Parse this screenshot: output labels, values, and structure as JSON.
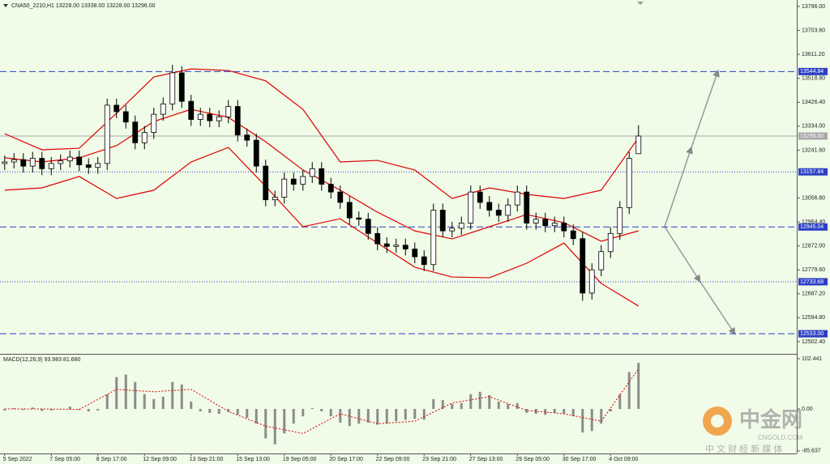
{
  "chart_data": [
    {
      "type": "candlestick",
      "title": "CNA50_2210,H1  13228.00 13338.00 13228.00 13296.00",
      "categories": [
        "5 Sep 2022",
        null,
        null,
        null,
        null,
        "7 Sep 05:00",
        null,
        null,
        null,
        null,
        "8 Sep 17:00",
        null,
        null,
        null,
        null,
        "12 Sep 09:00",
        null,
        null,
        null,
        null,
        "13 Sep 21:00",
        null,
        null,
        null,
        null,
        "15 Sep 13:00",
        null,
        null,
        null,
        null,
        "19 Sep 05:00",
        null,
        null,
        null,
        null,
        "20 Sep 17:00",
        null,
        null,
        null,
        null,
        "22 Sep 09:00",
        null,
        null,
        null,
        null,
        "23 Sep 21:00",
        null,
        null,
        null,
        null,
        "27 Sep 13:00",
        null,
        null,
        null,
        null,
        "29 Sep 05:00",
        null,
        null,
        null,
        null,
        "30 Sep 17:00",
        null,
        null,
        null,
        null,
        "4 Oct 09:00",
        null,
        null,
        null
      ],
      "open": [
        13190,
        13196,
        13205,
        13180,
        13210,
        13170,
        13190,
        13200,
        13215,
        13185,
        13175,
        13190,
        13415,
        13390,
        13350,
        13270,
        13310,
        13380,
        13420,
        13540,
        13430,
        13360,
        13380,
        13355,
        13370,
        13410,
        13300,
        13280,
        13180,
        13050,
        13060,
        13130,
        13110,
        13140,
        13170,
        13110,
        13080,
        13040,
        12980,
        12975,
        12920,
        12880,
        12870,
        12875,
        12860,
        12830,
        12800,
        13010,
        12930,
        12940,
        12960,
        13080,
        13040,
        13010,
        12990,
        13030,
        13080,
        12960,
        12975,
        12950,
        12960,
        12930,
        12900,
        12690,
        12780,
        12850,
        12920,
        13020,
        13228
      ],
      "high": [
        13221,
        13230,
        13230,
        13235,
        13235,
        13215,
        13225,
        13240,
        13240,
        13210,
        13215,
        13440,
        13440,
        13415,
        13375,
        13335,
        13405,
        13445,
        13571,
        13565,
        13455,
        13405,
        13405,
        13395,
        13435,
        13435,
        13325,
        13305,
        13205,
        13085,
        13155,
        13155,
        13165,
        13195,
        13195,
        13135,
        13105,
        13065,
        13005,
        13000,
        12945,
        12905,
        12900,
        12900,
        12885,
        12855,
        13035,
        13035,
        12965,
        12985,
        13105,
        13105,
        13065,
        13035,
        13055,
        13105,
        13105,
        13000,
        13000,
        12985,
        12985,
        12955,
        12925,
        12805,
        12875,
        12945,
        13045,
        13235,
        13338
      ],
      "low": [
        13165,
        13171,
        13155,
        13155,
        13145,
        13145,
        13165,
        13175,
        13160,
        13150,
        13150,
        13165,
        13365,
        13325,
        13245,
        13245,
        13285,
        13355,
        13395,
        13405,
        13335,
        13335,
        13330,
        13330,
        13345,
        13275,
        13255,
        13155,
        13025,
        13025,
        13035,
        13085,
        13085,
        13115,
        13085,
        13055,
        13015,
        12955,
        12950,
        12895,
        12855,
        12845,
        12845,
        12835,
        12805,
        12775,
        12775,
        12905,
        12905,
        12915,
        12935,
        13015,
        12985,
        12965,
        12965,
        13005,
        12935,
        12935,
        12925,
        12925,
        12905,
        12875,
        12660,
        12665,
        12755,
        12825,
        12895,
        12995,
        13228
      ],
      "close": [
        13196,
        13205,
        13180,
        13210,
        13170,
        13190,
        13200,
        13215,
        13185,
        13175,
        13190,
        13415,
        13390,
        13350,
        13270,
        13310,
        13380,
        13420,
        13540,
        13430,
        13360,
        13380,
        13355,
        13370,
        13410,
        13300,
        13280,
        13180,
        13050,
        13060,
        13130,
        13110,
        13140,
        13170,
        13110,
        13080,
        13040,
        12980,
        12975,
        12920,
        12880,
        12870,
        12875,
        12860,
        12830,
        12800,
        13010,
        12930,
        12940,
        12960,
        13080,
        13040,
        13010,
        12990,
        13030,
        13080,
        12960,
        12975,
        12950,
        12960,
        12930,
        12900,
        12690,
        12780,
        12850,
        12920,
        13020,
        13210,
        13296
      ],
      "up_color": "#ffffff",
      "down_color": "#000000",
      "bands": [
        {
          "color": "#e00000",
          "x": [
            0,
            4,
            8,
            12,
            16,
            20,
            24,
            28,
            32,
            36,
            40,
            44,
            48,
            52,
            56,
            60,
            64,
            68
          ],
          "values": [
            13305,
            13243,
            13249,
            13384,
            13524,
            13555,
            13549,
            13509,
            13399,
            13196,
            13202,
            13165,
            13055,
            13096,
            13071,
            13055,
            13087,
            13290
          ]
        },
        {
          "color": "#e00000",
          "x": [
            0,
            4,
            8,
            12,
            16,
            20,
            24,
            28,
            32,
            36,
            40,
            44,
            48,
            52,
            56,
            60,
            64,
            68
          ],
          "values": [
            13212,
            13196,
            13212,
            13259,
            13352,
            13399,
            13368,
            13274,
            13165,
            13087,
            13002,
            12930,
            12899,
            12946,
            12993,
            12962,
            12890,
            12930
          ]
        },
        {
          "color": "#e00000",
          "x": [
            0,
            4,
            8,
            12,
            16,
            20,
            24,
            28,
            32,
            36,
            40,
            44,
            48,
            52,
            56,
            60,
            64,
            68
          ],
          "values": [
            13087,
            13096,
            13140,
            13055,
            13087,
            13196,
            13252,
            13102,
            12946,
            12977,
            12883,
            12790,
            12752,
            12749,
            12805,
            12883,
            12727,
            12640
          ]
        }
      ],
      "levels": [
        {
          "value": 13544.84,
          "label": "13544.84",
          "style": "dashed",
          "color": "#2b3fc4"
        },
        {
          "value": 13296,
          "label": "13296.00",
          "style": "solid",
          "color": "#a8a8a8"
        },
        {
          "value": 13157.84,
          "label": "13157.84",
          "style": "dotted",
          "color": "#2b3fc4"
        },
        {
          "value": 12945.04,
          "label": "12945.04",
          "style": "dashed",
          "color": "#2b3fc4"
        },
        {
          "value": 12733.68,
          "label": "12733.68",
          "style": "dotted",
          "color": "#2b3fc4"
        },
        {
          "value": 12533,
          "label": "12533.00",
          "style": "dashed",
          "color": "#2b3fc4"
        }
      ],
      "ylim": [
        12455.4,
        13821
      ],
      "yticks": [
        {
          "value": 13796,
          "label": "13796.00"
        },
        {
          "value": 13703.6,
          "label": "13703.60"
        },
        {
          "value": 13611.2,
          "label": "13611.20"
        },
        {
          "value": 13518.8,
          "label": "13518.80"
        },
        {
          "value": 13426.4,
          "label": "13426.40"
        },
        {
          "value": 13334,
          "label": "13334.00"
        },
        {
          "value": 13241.6,
          "label": "13241.60"
        },
        {
          "value": 13056.8,
          "label": "13056.80"
        },
        {
          "value": 12964.4,
          "label": "12964.40"
        },
        {
          "value": 12872,
          "label": "12872.00"
        },
        {
          "value": 12779.6,
          "label": "12779.60"
        },
        {
          "value": 12687.2,
          "label": "12687.20"
        },
        {
          "value": 12594.8,
          "label": "12594.80"
        },
        {
          "value": 12502.4,
          "label": "12502.40"
        }
      ]
    },
    {
      "type": "bar",
      "title": "MACD(12,26,9) 93.983 81.680",
      "values": [
        -3,
        2,
        -2,
        3,
        -4,
        -3,
        -1,
        5,
        -2,
        -5,
        -3,
        30,
        65,
        70,
        55,
        30,
        20,
        25,
        55,
        50,
        15,
        -5,
        -8,
        -10,
        -6,
        -12,
        -18,
        -30,
        -60,
        -72,
        -50,
        -30,
        -15,
        2,
        -5,
        -15,
        -28,
        -35,
        -30,
        -28,
        -32,
        -30,
        -25,
        -22,
        -20,
        -22,
        20,
        18,
        10,
        12,
        30,
        35,
        28,
        15,
        10,
        12,
        -8,
        -10,
        -12,
        -8,
        -10,
        -15,
        -48,
        -45,
        -30,
        -5,
        30,
        75,
        93.983
      ],
      "color": "#8c8c8c",
      "signal": {
        "color": "#e00000",
        "x": [
          0,
          4,
          8,
          12,
          16,
          20,
          24,
          28,
          32,
          36,
          40,
          44,
          48,
          52,
          56,
          60,
          64,
          68
        ],
        "values": [
          0,
          0,
          -1,
          40,
          35,
          40,
          -5,
          -35,
          -50,
          -10,
          -30,
          -25,
          12,
          25,
          -3,
          -10,
          -25,
          81.68
        ]
      },
      "ylim": [
        -90.75,
        110.6
      ],
      "yticks": [
        102.441,
        {
          "value": 0,
          "label": "0.00"
        },
        -85.637
      ]
    }
  ],
  "watermark": {
    "brand": "中金网",
    "site": "CNGOLD.COM",
    "slogan": "中 文 财 经 新 媒 体"
  }
}
